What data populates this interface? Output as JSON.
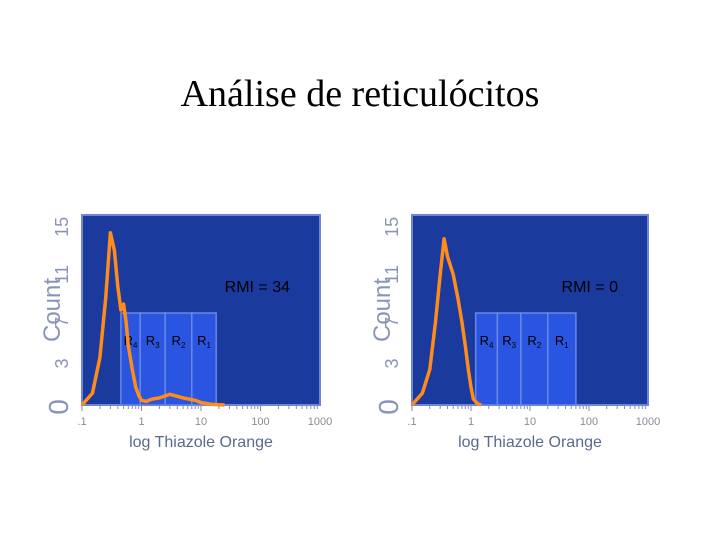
{
  "title": "Análise de reticulócitos",
  "chart_data": [
    {
      "type": "area",
      "xscale": "log",
      "xlabel": "log Thiazole Orange",
      "ylabel": "Count",
      "x_ticks": [
        ".1",
        "1",
        "10",
        "100",
        "1000"
      ],
      "y_ticks": [
        "0",
        "3",
        "7",
        "11",
        "15"
      ],
      "annotation": "RMI = 34",
      "regions": [
        {
          "main": "R",
          "sub": "4"
        },
        {
          "main": "R",
          "sub": "3"
        },
        {
          "main": "R",
          "sub": "2"
        },
        {
          "main": "R",
          "sub": "1"
        }
      ],
      "region_bounds": [
        0.45,
        0.95,
        2.5,
        7.0,
        18.0
      ],
      "series": [
        {
          "color": "#ff8c1a",
          "x": [
            0.1,
            0.15,
            0.2,
            0.25,
            0.3,
            0.35,
            0.4,
            0.45,
            0.5,
            0.55,
            0.6,
            0.7,
            0.8,
            0.9,
            1.0,
            1.2,
            1.5,
            2.0,
            3.0,
            5.0,
            8.0,
            10.0,
            15.0,
            25.0
          ],
          "y": [
            0,
            1,
            4,
            9,
            14.5,
            13,
            10,
            8,
            8.5,
            7,
            5,
            3,
            1.5,
            0.8,
            0.4,
            0.3,
            0.5,
            0.6,
            0.9,
            0.6,
            0.4,
            0.2,
            0.05,
            0
          ]
        }
      ]
    },
    {
      "type": "area",
      "xscale": "log",
      "xlabel": "log Thiazole Orange",
      "ylabel": "Count",
      "x_ticks": [
        ".1",
        "1",
        "10",
        "100",
        "1000"
      ],
      "y_ticks": [
        "0",
        "3",
        "7",
        "11",
        "15"
      ],
      "annotation": "RMI = 0",
      "regions": [
        {
          "main": "R",
          "sub": "4"
        },
        {
          "main": "R",
          "sub": "3"
        },
        {
          "main": "R",
          "sub": "2"
        },
        {
          "main": "R",
          "sub": "1"
        }
      ],
      "region_bounds": [
        1.2,
        2.8,
        7.0,
        20.0,
        60.0
      ],
      "series": [
        {
          "color": "#ff8c1a",
          "x": [
            0.1,
            0.15,
            0.2,
            0.25,
            0.3,
            0.35,
            0.4,
            0.5,
            0.6,
            0.7,
            0.8,
            0.9,
            1.0,
            1.1,
            1.3,
            1.5
          ],
          "y": [
            0,
            1,
            3,
            7,
            11,
            14,
            12.5,
            11,
            9,
            7,
            5,
            3,
            1.5,
            0.5,
            0.1,
            0
          ]
        }
      ]
    }
  ]
}
